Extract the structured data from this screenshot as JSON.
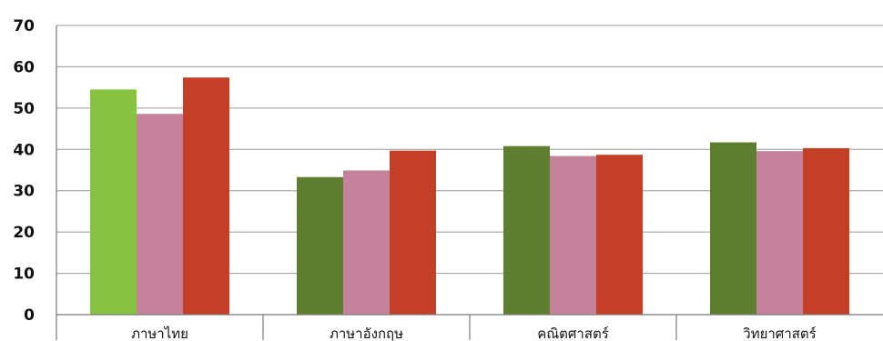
{
  "chart_data": {
    "type": "bar",
    "title": "",
    "xlabel": "",
    "ylabel": "",
    "ylim": [
      0,
      70
    ],
    "yticks": [
      0,
      10,
      20,
      30,
      40,
      50,
      60,
      70
    ],
    "grid": true,
    "legend": "none",
    "categories": [
      "ภาษาไทย",
      "ภาษาอังกฤษ",
      "คณิตศาสตร์",
      "วิทยาศาสตร์"
    ],
    "series": [
      {
        "values": [
          54.5,
          33.3,
          40.8,
          41.7
        ],
        "colors": [
          "#86c440",
          "#5e7f2e",
          "#5e7f2e",
          "#5e7f2e"
        ]
      },
      {
        "values": [
          48.6,
          34.9,
          38.4,
          39.6
        ],
        "colors": [
          "#c5839b",
          "#c5839b",
          "#c5839b",
          "#c5839b"
        ]
      },
      {
        "values": [
          57.4,
          39.7,
          38.7,
          40.3
        ],
        "colors": [
          "#c43f26",
          "#c43f26",
          "#c43f26",
          "#c43f26"
        ]
      }
    ]
  }
}
